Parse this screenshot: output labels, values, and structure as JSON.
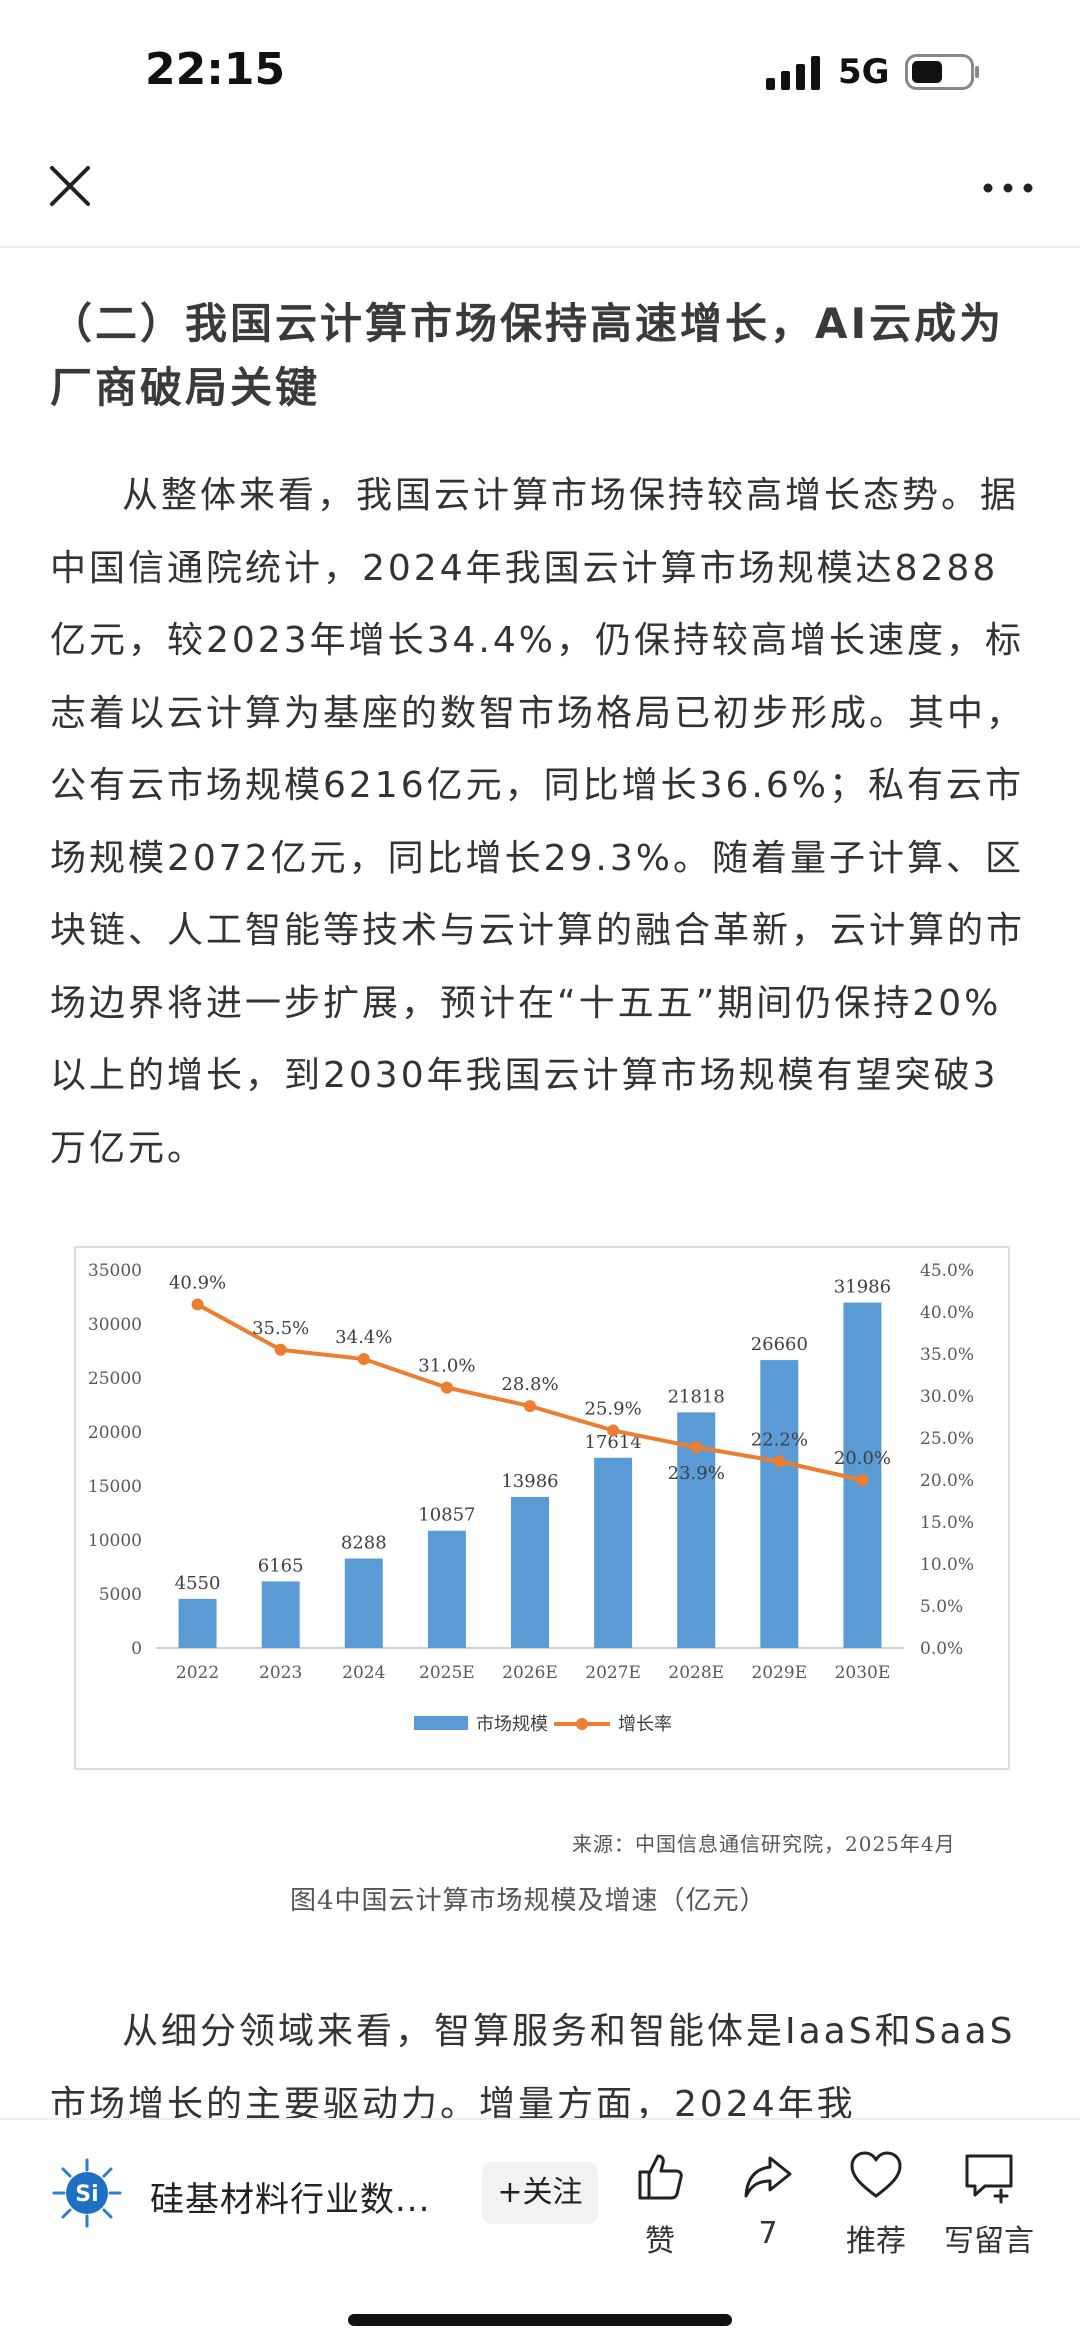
{
  "status_bar": {
    "time": "22:15",
    "network": "5G"
  },
  "article": {
    "section_title": "（二）我国云计算市场保持高速增长，AI云成为厂商破局关键",
    "paragraph_1": "从整体来看，我国云计算市场保持较高增长态势。据中国信通院统计，2024年我国云计算市场规模达8288亿元，较2023年增长34.4%，仍保持较高增长速度，标志着以云计算为基座的数智市场格局已初步形成。其中，公有云市场规模6216亿元，同比增长36.6%；私有云市场规模2072亿元，同比增长29.3%。随着量子计算、区块链、人工智能等技术与云计算的融合革新，云计算的市场边界将进一步扩展，预计在“十五五”期间仍保持20%以上的增长，到2030年我国云计算市场规模有望突破3万亿元。",
    "chart_source": "来源：中国信息通信研究院，2025年4月",
    "chart_caption": "图4中国云计算市场规模及增速（亿元）",
    "paragraph_2": "从细分领域来看，智算服务和智能体是IaaS和SaaS市场增长的主要驱动力。增量方面，2024年我"
  },
  "chart_data": {
    "type": "bar",
    "categories": [
      "2022",
      "2023",
      "2024",
      "2025E",
      "2026E",
      "2027E",
      "2028E",
      "2029E",
      "2030E"
    ],
    "series": [
      {
        "name": "市场规模",
        "type": "bar",
        "axis": "left",
        "color": "#5b9bd5",
        "values": [
          4550,
          6165,
          8288,
          10857,
          13986,
          17614,
          21818,
          26660,
          31986
        ]
      },
      {
        "name": "增长率",
        "type": "line",
        "axis": "right",
        "color": "#ed7d31",
        "values": [
          40.9,
          35.5,
          34.4,
          31.0,
          28.8,
          25.9,
          23.9,
          22.2,
          20.0
        ]
      }
    ],
    "bar_labels": [
      "4550",
      "6165",
      "8288",
      "10857",
      "13986",
      "17614",
      "21818",
      "26660",
      "31986"
    ],
    "line_labels": [
      "40.9%",
      "35.5%",
      "34.4%",
      "31.0%",
      "28.8%",
      "25.9%",
      "23.9%",
      "22.2%",
      "20.0%"
    ],
    "y_left": {
      "min": 0,
      "max": 35000,
      "step": 5000,
      "ticks": [
        "0",
        "5000",
        "10000",
        "15000",
        "20000",
        "25000",
        "30000",
        "35000"
      ]
    },
    "y_right": {
      "min": 0,
      "max": 45,
      "step": 5,
      "ticks": [
        "0.0%",
        "5.0%",
        "10.0%",
        "15.0%",
        "20.0%",
        "25.0%",
        "30.0%",
        "35.0%",
        "40.0%",
        "45.0%"
      ]
    },
    "legend": [
      "市场规模",
      "增长率"
    ],
    "legend_position": "bottom",
    "grid": false
  },
  "bottom_bar": {
    "account_name": "硅基材料行业数...",
    "follow_label": "+关注",
    "actions": {
      "like": {
        "label": "赞",
        "icon": "thumbs-up-icon"
      },
      "share": {
        "label": "7",
        "icon": "share-icon"
      },
      "recommend": {
        "label": "推荐",
        "icon": "heart-icon"
      },
      "comment": {
        "label": "写留言",
        "icon": "comment-icon"
      }
    },
    "logo_text": "Si"
  }
}
